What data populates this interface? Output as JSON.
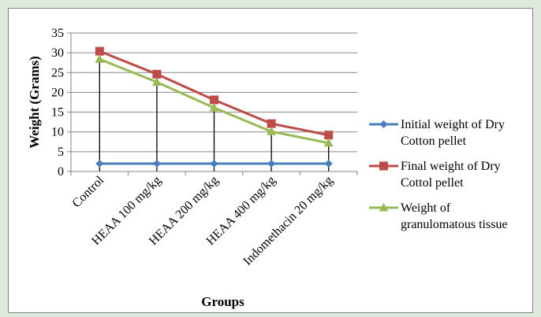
{
  "chart_data": {
    "type": "line",
    "title": "",
    "xlabel": "Groups",
    "ylabel": "Weight (Grams)",
    "ylim": [
      0,
      35
    ],
    "yticks": [
      0,
      5,
      10,
      15,
      20,
      25,
      30,
      35
    ],
    "grid": "horizontal",
    "legend_position": "right",
    "drop_lines": true,
    "categories": [
      "Control",
      "HEAA 100 mg/kg",
      "HEAA 200 mg/kg",
      "HEAA 400 mg/kg",
      "Indomethacin 20 mg/kg"
    ],
    "series": [
      {
        "name_lines": [
          "Initial weight of Dry",
          "Cotton pellet"
        ],
        "values": [
          2,
          2,
          2,
          2,
          2
        ],
        "color": "#4a7ebb",
        "marker": "diamond"
      },
      {
        "name_lines": [
          "Final weight of Dry",
          "Cottol pellet"
        ],
        "values": [
          30.4,
          24.6,
          18.1,
          12.1,
          9.2
        ],
        "color": "#be4b48",
        "marker": "square"
      },
      {
        "name_lines": [
          "Weight of",
          "granulomatous tissue"
        ],
        "values": [
          28.4,
          22.6,
          16.1,
          10.1,
          7.2
        ],
        "color": "#98b954",
        "marker": "triangle"
      }
    ]
  }
}
